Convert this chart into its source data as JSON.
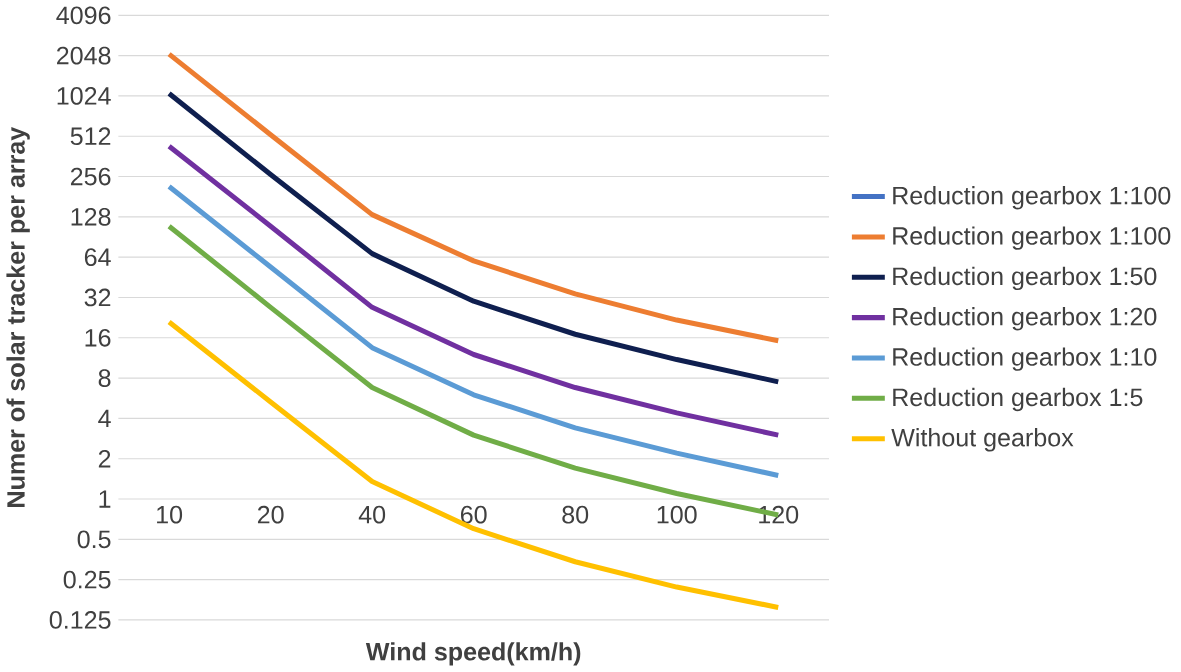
{
  "chart_data": {
    "type": "line",
    "xlabel": "Wind speed(km/h)",
    "ylabel": "Numer of solar tracker per array",
    "categories": [
      "10",
      "20",
      "40",
      "60",
      "80",
      "100",
      "120"
    ],
    "log": "y",
    "ylim": [
      0.125,
      4096
    ],
    "yticks": [
      0.125,
      0.25,
      0.5,
      1,
      2,
      4,
      8,
      16,
      32,
      64,
      128,
      256,
      512,
      1024,
      2048,
      4096
    ],
    "grid": "y",
    "legend": "right",
    "marker": "none",
    "line_style": "solid",
    "series": [
      {
        "name": "Reduction gearbox 1:100",
        "color": "#4472c4",
        "values": [
          null,
          null,
          null,
          null,
          null,
          null,
          null
        ]
      },
      {
        "name": "Reduction gearbox 1:100",
        "color": "#ed7d31",
        "values": [
          2100,
          525,
          133,
          60,
          34,
          21.7,
          15.2
        ]
      },
      {
        "name": "Reduction gearbox 1:50",
        "color": "#0f1f4f",
        "values": [
          1067,
          265,
          68,
          30,
          17,
          11,
          7.5
        ]
      },
      {
        "name": "Reduction gearbox 1:20",
        "color": "#7030a0",
        "values": [
          431,
          109,
          27,
          12,
          6.8,
          4.4,
          3.0
        ]
      },
      {
        "name": "Reduction gearbox 1:10",
        "color": "#5b9bd5",
        "values": [
          216,
          54,
          13.5,
          6,
          3.4,
          2.2,
          1.5
        ]
      },
      {
        "name": "Reduction gearbox 1:5",
        "color": "#70ad47",
        "values": [
          109,
          27,
          6.8,
          3.0,
          1.7,
          1.1,
          0.76
        ]
      },
      {
        "name": "Without gearbox",
        "color": "#ffc000",
        "values": [
          21,
          5.3,
          1.35,
          0.6,
          0.34,
          0.22,
          0.155
        ]
      }
    ]
  }
}
